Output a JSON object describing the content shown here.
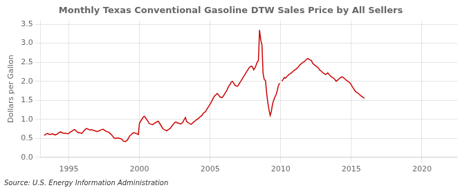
{
  "chart_data": {
    "type": "line",
    "title": "Monthly Texas Conventional Gasoline DTW Sales Price by All Sellers",
    "ylabel": "Dollars per Gallon",
    "annotation": "Source: U.S. Energy Information Administration",
    "xlim": [
      1993.0,
      2022.5
    ],
    "xticks": [
      1995,
      2000,
      2005,
      2010,
      2015,
      2020
    ],
    "ylim": [
      0.0,
      3.6
    ],
    "yticks": [
      {
        "value": 0.0,
        "label": "0.0"
      },
      0.5,
      {
        "value": 1.0,
        "label": "1.0"
      },
      1.5,
      {
        "value": 2.0,
        "label": "2.0"
      },
      2.5,
      {
        "value": 3.0,
        "label": "3.0"
      },
      3.5
    ],
    "grid": true,
    "series": [
      {
        "color": "#cc0000",
        "x": [
          1993.25,
          1993.33,
          1993.42,
          1993.5,
          1993.58,
          1993.67,
          1993.75,
          1993.83,
          1993.92,
          1994.0,
          1994.08,
          1994.17,
          1994.25,
          1994.33,
          1994.42,
          1994.5,
          1994.58,
          1994.67,
          1994.75,
          1994.83,
          1994.92,
          1995.0,
          1995.08,
          1995.17,
          1995.25,
          1995.33,
          1995.42,
          1995.5,
          1995.58,
          1995.67,
          1995.75,
          1995.83,
          1995.92,
          1996.0,
          1996.08,
          1996.17,
          1996.25,
          1996.33,
          1996.42,
          1996.5,
          1996.58,
          1996.67,
          1996.75,
          1996.83,
          1996.92,
          1997.0,
          1997.08,
          1997.17,
          1997.25,
          1997.33,
          1997.42,
          1997.5,
          1997.58,
          1997.67,
          1997.75,
          1997.83,
          1997.92,
          1998.0,
          1998.08,
          1998.17,
          1998.25,
          1998.33,
          1998.42,
          1998.5,
          1998.58,
          1998.67,
          1998.75,
          1998.83,
          1998.92,
          1999.0,
          1999.08,
          1999.17,
          1999.25,
          1999.33,
          1999.42,
          1999.5,
          1999.58,
          1999.67,
          1999.75,
          1999.83,
          1999.92,
          2000.0,
          2000.08,
          2000.17,
          2000.25,
          2000.33,
          2000.42,
          2000.5,
          2000.58,
          2000.67,
          2000.75,
          2000.83,
          2000.92,
          2001.0,
          2001.08,
          2001.17,
          2001.25,
          2001.33,
          2001.42,
          2001.5,
          2001.58,
          2001.67,
          2001.75,
          2001.83,
          2001.92,
          2002.0,
          2002.08,
          2002.17,
          2002.25,
          2002.33,
          2002.42,
          2002.5,
          2002.58,
          2002.67,
          2002.75,
          2002.83,
          2002.92,
          2003.0,
          2003.08,
          2003.17,
          2003.25,
          2003.33,
          2003.42,
          2003.5,
          2003.58,
          2003.67,
          2003.75,
          2003.83,
          2003.92,
          2004.0,
          2004.08,
          2004.17,
          2004.25,
          2004.33,
          2004.42,
          2004.5,
          2004.58,
          2004.67,
          2004.75,
          2004.83,
          2004.92,
          2005.0,
          2005.08,
          2005.17,
          2005.25,
          2005.33,
          2005.42,
          2005.5,
          2005.58,
          2005.67,
          2005.75,
          2005.83,
          2005.92,
          2006.0,
          2006.08,
          2006.17,
          2006.25,
          2006.33,
          2006.42,
          2006.5,
          2006.58,
          2006.67,
          2006.75,
          2006.83,
          2006.92,
          2007.0,
          2007.08,
          2007.17,
          2007.25,
          2007.33,
          2007.42,
          2007.5,
          2007.58,
          2007.67,
          2007.75,
          2007.83,
          2007.92,
          2008.0,
          2008.08,
          2008.17,
          2008.25,
          2008.33,
          2008.42,
          2008.5,
          2008.58,
          2008.67,
          2008.75,
          2008.83,
          2008.92,
          2009.0,
          2009.08,
          2009.17,
          2009.25,
          2009.33,
          2009.42,
          2009.5,
          2009.58,
          2009.67,
          2009.75,
          2009.83,
          2009.92
        ],
        "values": [
          0.58,
          0.6,
          0.62,
          0.63,
          0.61,
          0.6,
          0.61,
          0.62,
          0.61,
          0.59,
          0.6,
          0.61,
          0.64,
          0.66,
          0.67,
          0.65,
          0.64,
          0.63,
          0.64,
          0.63,
          0.62,
          0.63,
          0.66,
          0.68,
          0.7,
          0.72,
          0.73,
          0.7,
          0.67,
          0.65,
          0.65,
          0.64,
          0.63,
          0.67,
          0.7,
          0.74,
          0.76,
          0.75,
          0.73,
          0.72,
          0.73,
          0.72,
          0.71,
          0.7,
          0.69,
          0.68,
          0.69,
          0.7,
          0.72,
          0.73,
          0.74,
          0.72,
          0.7,
          0.68,
          0.67,
          0.66,
          0.63,
          0.6,
          0.57,
          0.52,
          0.5,
          0.5,
          0.51,
          0.51,
          0.5,
          0.49,
          0.48,
          0.44,
          0.42,
          0.42,
          0.44,
          0.47,
          0.53,
          0.57,
          0.6,
          0.63,
          0.65,
          0.64,
          0.63,
          0.62,
          0.6,
          0.9,
          0.95,
          1.0,
          1.05,
          1.08,
          1.05,
          1.0,
          0.96,
          0.9,
          0.88,
          0.87,
          0.86,
          0.88,
          0.9,
          0.92,
          0.94,
          0.95,
          0.9,
          0.85,
          0.8,
          0.75,
          0.73,
          0.72,
          0.7,
          0.72,
          0.74,
          0.76,
          0.8,
          0.84,
          0.88,
          0.92,
          0.93,
          0.91,
          0.9,
          0.89,
          0.88,
          0.9,
          0.93,
          1.0,
          1.05,
          0.95,
          0.92,
          0.9,
          0.88,
          0.87,
          0.9,
          0.93,
          0.95,
          0.98,
          1.0,
          1.02,
          1.05,
          1.08,
          1.1,
          1.15,
          1.18,
          1.2,
          1.25,
          1.3,
          1.35,
          1.4,
          1.45,
          1.52,
          1.58,
          1.62,
          1.65,
          1.68,
          1.65,
          1.6,
          1.58,
          1.57,
          1.6,
          1.65,
          1.7,
          1.75,
          1.82,
          1.88,
          1.92,
          1.98,
          2.0,
          1.95,
          1.9,
          1.88,
          1.87,
          1.9,
          1.95,
          2.0,
          2.05,
          2.1,
          2.15,
          2.2,
          2.25,
          2.3,
          2.35,
          2.38,
          2.4,
          2.38,
          2.3,
          2.35,
          2.42,
          2.5,
          2.55,
          3.35,
          3.1,
          2.95,
          2.2,
          2.05,
          2.02,
          1.7,
          1.45,
          1.25,
          1.1,
          1.2,
          1.4,
          1.5,
          1.58,
          1.65,
          1.75,
          1.88,
          1.95
        ]
      },
      {
        "color": "#cc0000",
        "x": [
          2010.08,
          2010.17,
          2010.25,
          2010.33,
          2010.42,
          2010.5,
          2010.58,
          2010.67,
          2010.75,
          2010.83,
          2010.92,
          2011.0,
          2011.08,
          2011.17,
          2011.25,
          2011.33,
          2011.42,
          2011.5,
          2011.58,
          2011.67,
          2011.75,
          2011.83,
          2011.92,
          2012.0,
          2012.08,
          2012.17,
          2012.25,
          2012.33,
          2012.42,
          2012.5,
          2012.58,
          2012.67,
          2012.75,
          2012.83,
          2012.92,
          2013.0,
          2013.08,
          2013.17,
          2013.25,
          2013.33,
          2013.42,
          2013.5,
          2013.58,
          2013.67,
          2013.75,
          2013.83,
          2013.92,
          2014.0,
          2014.08,
          2014.17,
          2014.25,
          2014.33,
          2014.42,
          2014.5,
          2014.58,
          2014.67,
          2014.75,
          2014.83,
          2014.92,
          2015.0,
          2015.08,
          2015.17,
          2015.25,
          2015.33,
          2015.42,
          2015.5,
          2015.58,
          2015.67,
          2015.75,
          2015.83,
          2015.92
        ],
        "values": [
          2.0,
          2.05,
          2.1,
          2.08,
          2.12,
          2.15,
          2.18,
          2.2,
          2.22,
          2.25,
          2.28,
          2.3,
          2.32,
          2.35,
          2.38,
          2.42,
          2.45,
          2.48,
          2.5,
          2.52,
          2.55,
          2.58,
          2.6,
          2.58,
          2.56,
          2.55,
          2.48,
          2.45,
          2.42,
          2.4,
          2.38,
          2.35,
          2.3,
          2.28,
          2.25,
          2.22,
          2.2,
          2.18,
          2.2,
          2.22,
          2.18,
          2.15,
          2.12,
          2.1,
          2.08,
          2.05,
          2.0,
          2.02,
          2.05,
          2.08,
          2.1,
          2.12,
          2.1,
          2.08,
          2.05,
          2.02,
          2.0,
          1.98,
          1.95,
          1.9,
          1.85,
          1.8,
          1.75,
          1.72,
          1.7,
          1.68,
          1.65,
          1.62,
          1.6,
          1.58,
          1.55
        ]
      }
    ]
  }
}
